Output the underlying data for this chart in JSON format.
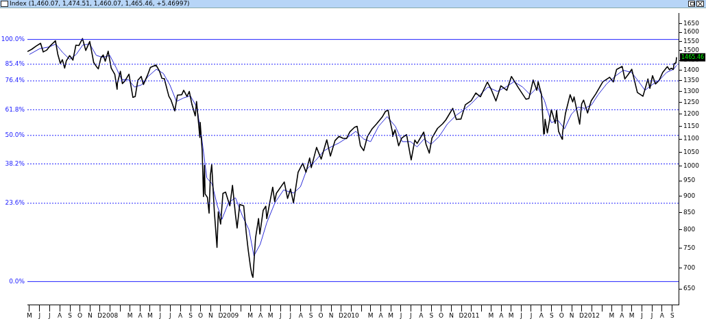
{
  "chart_data": {
    "type": "line",
    "title": "Index (1,460.07, 1,474.51, 1,460.07, 1,465.46, +5.46997)",
    "log": "y",
    "marker": "none",
    "line_style": "solid",
    "xlim": [
      "2007-04-25",
      "2012-09-20"
    ],
    "xticks": [
      {
        "value": "2007-05-01",
        "label": "M"
      },
      {
        "value": "2007-06-01",
        "label": "J"
      },
      {
        "value": "2007-07-01",
        "label": "J"
      },
      {
        "value": "2007-08-01",
        "label": "A"
      },
      {
        "value": "2007-09-01",
        "label": "S"
      },
      {
        "value": "2007-10-01",
        "label": "O"
      },
      {
        "value": "2007-11-01",
        "label": "N"
      },
      {
        "value": "2007-12-01",
        "label": "D"
      },
      {
        "value": "2008-01-01",
        "label": "2008"
      },
      {
        "value": "2008-02-01",
        "label": null
      },
      {
        "value": "2008-03-01",
        "label": "M"
      },
      {
        "value": "2008-04-01",
        "label": "A"
      },
      {
        "value": "2008-05-01",
        "label": "M"
      },
      {
        "value": "2008-06-01",
        "label": "J"
      },
      {
        "value": "2008-07-01",
        "label": "J"
      },
      {
        "value": "2008-08-01",
        "label": "A"
      },
      {
        "value": "2008-09-01",
        "label": "S"
      },
      {
        "value": "2008-10-01",
        "label": "O"
      },
      {
        "value": "2008-11-01",
        "label": "N"
      },
      {
        "value": "2008-12-01",
        "label": "D"
      },
      {
        "value": "2009-01-01",
        "label": "2009"
      },
      {
        "value": "2009-02-01",
        "label": null
      },
      {
        "value": "2009-03-01",
        "label": "M"
      },
      {
        "value": "2009-04-01",
        "label": "A"
      },
      {
        "value": "2009-05-01",
        "label": "M"
      },
      {
        "value": "2009-06-01",
        "label": "J"
      },
      {
        "value": "2009-07-01",
        "label": "J"
      },
      {
        "value": "2009-08-01",
        "label": "A"
      },
      {
        "value": "2009-09-01",
        "label": "S"
      },
      {
        "value": "2009-10-01",
        "label": "O"
      },
      {
        "value": "2009-11-01",
        "label": "N"
      },
      {
        "value": "2009-12-01",
        "label": "D"
      },
      {
        "value": "2010-01-01",
        "label": "2010"
      },
      {
        "value": "2010-02-01",
        "label": null
      },
      {
        "value": "2010-03-01",
        "label": "M"
      },
      {
        "value": "2010-04-01",
        "label": "A"
      },
      {
        "value": "2010-05-01",
        "label": "M"
      },
      {
        "value": "2010-06-01",
        "label": "J"
      },
      {
        "value": "2010-07-01",
        "label": "J"
      },
      {
        "value": "2010-08-01",
        "label": "A"
      },
      {
        "value": "2010-09-01",
        "label": "S"
      },
      {
        "value": "2010-10-01",
        "label": "O"
      },
      {
        "value": "2010-11-01",
        "label": "N"
      },
      {
        "value": "2010-12-01",
        "label": "D"
      },
      {
        "value": "2011-01-01",
        "label": "2011"
      },
      {
        "value": "2011-02-01",
        "label": null
      },
      {
        "value": "2011-03-01",
        "label": "M"
      },
      {
        "value": "2011-04-01",
        "label": "A"
      },
      {
        "value": "2011-05-01",
        "label": "M"
      },
      {
        "value": "2011-06-01",
        "label": "J"
      },
      {
        "value": "2011-07-01",
        "label": "J"
      },
      {
        "value": "2011-08-01",
        "label": "A"
      },
      {
        "value": "2011-09-01",
        "label": "S"
      },
      {
        "value": "2011-10-01",
        "label": "O"
      },
      {
        "value": "2011-11-01",
        "label": "N"
      },
      {
        "value": "2011-12-01",
        "label": "D"
      },
      {
        "value": "2012-01-01",
        "label": "2012"
      },
      {
        "value": "2012-02-01",
        "label": null
      },
      {
        "value": "2012-03-01",
        "label": "M"
      },
      {
        "value": "2012-04-01",
        "label": "A"
      },
      {
        "value": "2012-05-01",
        "label": "M"
      },
      {
        "value": "2012-06-01",
        "label": "J"
      },
      {
        "value": "2012-07-01",
        "label": "J"
      },
      {
        "value": "2012-08-01",
        "label": "A"
      },
      {
        "value": "2012-09-01",
        "label": "S"
      }
    ],
    "ylim": [
      615,
      1710
    ],
    "yticks": [
      650,
      700,
      750,
      800,
      850,
      900,
      950,
      1000,
      1050,
      1100,
      1150,
      1200,
      1250,
      1300,
      1350,
      1400,
      1450,
      1500,
      1550,
      1600,
      1650
    ],
    "series": [
      {
        "color": "#000000",
        "x": [
          "2007-04-25",
          "2007-05-08",
          "2007-05-22",
          "2007-06-04",
          "2007-06-12",
          "2007-06-22",
          "2007-07-03",
          "2007-07-19",
          "2007-07-26",
          "2007-08-03",
          "2007-08-09",
          "2007-08-16",
          "2007-08-21",
          "2007-08-31",
          "2007-09-10",
          "2007-09-19",
          "2007-09-28",
          "2007-10-09",
          "2007-10-19",
          "2007-10-31",
          "2007-11-08",
          "2007-11-12",
          "2007-11-21",
          "2007-11-26",
          "2007-12-04",
          "2007-12-11",
          "2007-12-17",
          "2007-12-26",
          "2008-01-04",
          "2008-01-15",
          "2008-01-22",
          "2008-01-23",
          "2008-02-01",
          "2008-02-07",
          "2008-02-15",
          "2008-02-27",
          "2008-03-10",
          "2008-03-17",
          "2008-03-25",
          "2008-04-04",
          "2008-04-11",
          "2008-04-23",
          "2008-05-02",
          "2008-05-19",
          "2008-05-29",
          "2008-06-06",
          "2008-06-13",
          "2008-06-27",
          "2008-07-03",
          "2008-07-15",
          "2008-07-23",
          "2008-08-05",
          "2008-08-11",
          "2008-08-21",
          "2008-08-28",
          "2008-09-05",
          "2008-09-15",
          "2008-09-19",
          "2008-09-29",
          "2008-09-30",
          "2008-10-06",
          "2008-10-10",
          "2008-10-13",
          "2008-10-15",
          "2008-10-22",
          "2008-10-27",
          "2008-10-31",
          "2008-11-04",
          "2008-11-12",
          "2008-11-20",
          "2008-11-24",
          "2008-12-01",
          "2008-12-08",
          "2008-12-16",
          "2008-12-29",
          "2009-01-06",
          "2009-01-15",
          "2009-01-20",
          "2009-01-28",
          "2009-02-09",
          "2009-02-17",
          "2009-02-23",
          "2009-03-02",
          "2009-03-06",
          "2009-03-09",
          "2009-03-17",
          "2009-03-26",
          "2009-03-30",
          "2009-04-09",
          "2009-04-17",
          "2009-04-20",
          "2009-05-08",
          "2009-05-14",
          "2009-05-19",
          "2009-06-12",
          "2009-06-22",
          "2009-07-01",
          "2009-07-10",
          "2009-07-24",
          "2009-08-07",
          "2009-08-17",
          "2009-08-28",
          "2009-09-02",
          "2009-09-18",
          "2009-10-02",
          "2009-10-19",
          "2009-10-30",
          "2009-11-13",
          "2009-11-25",
          "2009-12-07",
          "2009-12-18",
          "2009-12-28",
          "2010-01-11",
          "2010-01-19",
          "2010-01-29",
          "2010-02-08",
          "2010-02-19",
          "2010-03-05",
          "2010-03-19",
          "2010-04-05",
          "2010-04-15",
          "2010-04-23",
          "2010-04-27",
          "2010-05-06",
          "2010-05-07",
          "2010-05-14",
          "2010-05-25",
          "2010-06-03",
          "2010-06-18",
          "2010-06-29",
          "2010-07-02",
          "2010-07-13",
          "2010-07-20",
          "2010-08-09",
          "2010-08-16",
          "2010-08-26",
          "2010-09-03",
          "2010-09-20",
          "2010-10-05",
          "2010-10-15",
          "2010-11-05",
          "2010-11-16",
          "2010-11-30",
          "2010-12-13",
          "2010-12-31",
          "2011-01-14",
          "2011-01-28",
          "2011-02-18",
          "2011-03-02",
          "2011-03-16",
          "2011-03-31",
          "2011-04-18",
          "2011-05-02",
          "2011-05-23",
          "2011-06-15",
          "2011-06-24",
          "2011-07-07",
          "2011-07-18",
          "2011-07-22",
          "2011-08-01",
          "2011-08-08",
          "2011-08-10",
          "2011-08-12",
          "2011-08-19",
          "2011-08-31",
          "2011-09-12",
          "2011-09-16",
          "2011-09-22",
          "2011-10-03",
          "2011-10-04",
          "2011-10-13",
          "2011-10-27",
          "2011-11-04",
          "2011-11-08",
          "2011-11-25",
          "2011-12-01",
          "2011-12-07",
          "2011-12-19",
          "2011-12-30",
          "2012-01-13",
          "2012-02-03",
          "2012-02-24",
          "2012-03-06",
          "2012-03-16",
          "2012-04-02",
          "2012-04-10",
          "2012-04-20",
          "2012-05-01",
          "2012-05-18",
          "2012-06-04",
          "2012-06-19",
          "2012-06-25",
          "2012-07-03",
          "2012-07-12",
          "2012-07-23",
          "2012-08-03",
          "2012-08-17",
          "2012-08-23",
          "2012-08-29",
          "2012-09-04",
          "2012-09-06",
          "2012-09-12",
          "2012-09-14"
        ],
        "values": [
          1495,
          1507,
          1525,
          1539,
          1493,
          1502,
          1525,
          1553,
          1482,
          1434,
          1453,
          1411,
          1447,
          1474,
          1451,
          1529,
          1527,
          1565,
          1501,
          1549,
          1475,
          1439,
          1417,
          1407,
          1463,
          1477,
          1445,
          1497,
          1411,
          1380,
          1310,
          1338,
          1395,
          1336,
          1349,
          1381,
          1273,
          1277,
          1352,
          1370,
          1332,
          1375,
          1414,
          1426,
          1398,
          1361,
          1360,
          1278,
          1263,
          1214,
          1283,
          1285,
          1305,
          1277,
          1300,
          1242,
          1193,
          1255,
          1106,
          1166,
          1057,
          899,
          1003,
          907,
          896,
          848,
          969,
          1005,
          852,
          752,
          852,
          816,
          909,
          913,
          870,
          935,
          843,
          805,
          874,
          870,
          789,
          743,
          700,
          683,
          677,
          778,
          832,
          788,
          856,
          869,
          832,
          929,
          883,
          909,
          946,
          893,
          923,
          879,
          979,
          1010,
          979,
          1029,
          995,
          1068,
          1025,
          1097,
          1036,
          1094,
          1110,
          1103,
          1102,
          1128,
          1146,
          1150,
          1074,
          1056,
          1109,
          1139,
          1160,
          1188,
          1212,
          1217,
          1183,
          1128,
          1110,
          1136,
          1074,
          1103,
          1117,
          1041,
          1022,
          1096,
          1083,
          1127,
          1080,
          1047,
          1104,
          1142,
          1160,
          1176,
          1225,
          1178,
          1180,
          1240,
          1258,
          1293,
          1276,
          1343,
          1308,
          1257,
          1326,
          1305,
          1370,
          1317,
          1265,
          1268,
          1353,
          1305,
          1345,
          1287,
          1119,
          1121,
          1179,
          1124,
          1219,
          1162,
          1216,
          1130,
          1099,
          1124,
          1204,
          1285,
          1253,
          1275,
          1159,
          1244,
          1261,
          1205,
          1258,
          1289,
          1344,
          1366,
          1344,
          1404,
          1419,
          1358,
          1379,
          1405,
          1295,
          1278,
          1358,
          1314,
          1374,
          1334,
          1351,
          1390,
          1418,
          1403,
          1410,
          1404,
          1432,
          1437,
          1465.46
        ]
      },
      {
        "color": "#2b2bd8",
        "x": [
          "2007-05-01",
          "2007-06-01",
          "2007-07-01",
          "2007-07-20",
          "2007-08-10",
          "2007-08-31",
          "2007-09-20",
          "2007-10-10",
          "2007-10-31",
          "2007-11-20",
          "2007-12-10",
          "2007-12-31",
          "2008-01-20",
          "2008-02-05",
          "2008-02-25",
          "2008-03-15",
          "2008-04-05",
          "2008-04-25",
          "2008-05-20",
          "2008-06-10",
          "2008-06-30",
          "2008-07-20",
          "2008-08-10",
          "2008-08-31",
          "2008-09-20",
          "2008-10-05",
          "2008-10-20",
          "2008-11-05",
          "2008-11-21",
          "2008-12-05",
          "2008-12-25",
          "2009-01-15",
          "2009-02-05",
          "2009-02-25",
          "2009-03-12",
          "2009-03-31",
          "2009-04-20",
          "2009-05-15",
          "2009-06-10",
          "2009-07-10",
          "2009-07-31",
          "2009-08-20",
          "2009-09-15",
          "2009-10-10",
          "2009-11-01",
          "2009-11-25",
          "2009-12-20",
          "2010-01-15",
          "2010-02-08",
          "2010-03-01",
          "2010-03-25",
          "2010-04-20",
          "2010-05-15",
          "2010-06-05",
          "2010-06-30",
          "2010-07-20",
          "2010-08-10",
          "2010-08-31",
          "2010-09-25",
          "2010-10-20",
          "2010-11-15",
          "2010-12-10",
          "2010-12-31",
          "2011-01-20",
          "2011-02-20",
          "2011-03-20",
          "2011-04-15",
          "2011-05-10",
          "2011-06-05",
          "2011-06-28",
          "2011-07-20",
          "2011-08-10",
          "2011-08-31",
          "2011-09-20",
          "2011-10-10",
          "2011-10-31",
          "2011-11-20",
          "2011-12-10",
          "2011-12-31",
          "2012-01-20",
          "2012-02-15",
          "2012-03-15",
          "2012-04-05",
          "2012-04-30",
          "2012-05-20",
          "2012-06-10",
          "2012-07-01",
          "2012-07-25",
          "2012-08-15",
          "2012-09-05",
          "2012-09-14"
        ],
        "values": [
          1480,
          1510,
          1520,
          1535,
          1490,
          1455,
          1480,
          1530,
          1535,
          1475,
          1465,
          1475,
          1410,
          1355,
          1355,
          1320,
          1330,
          1370,
          1405,
          1385,
          1330,
          1255,
          1270,
          1280,
          1230,
          1100,
          960,
          940,
          870,
          830,
          880,
          895,
          840,
          800,
          730,
          760,
          820,
          880,
          920,
          910,
          930,
          990,
          1020,
          1055,
          1070,
          1085,
          1105,
          1130,
          1100,
          1090,
          1150,
          1190,
          1150,
          1090,
          1090,
          1070,
          1100,
          1080,
          1110,
          1160,
          1195,
          1220,
          1245,
          1275,
          1320,
          1300,
          1320,
          1345,
          1320,
          1285,
          1320,
          1260,
          1165,
          1175,
          1140,
          1200,
          1230,
          1225,
          1240,
          1285,
          1335,
          1375,
          1400,
          1390,
          1350,
          1305,
          1330,
          1355,
          1390,
          1405,
          1425
        ]
      }
    ],
    "ref_lines": [
      {
        "axis": "y",
        "value": 1560,
        "color": "#2020ff",
        "line_style": "solid"
      },
      {
        "axis": "y",
        "value": 1430,
        "color": "#2020ff",
        "line_style": "dotted"
      },
      {
        "axis": "y",
        "value": 1349,
        "color": "#2020ff",
        "line_style": "dotted"
      },
      {
        "axis": "y",
        "value": 1219,
        "color": "#2020ff",
        "line_style": "dotted"
      },
      {
        "axis": "y",
        "value": 1114,
        "color": "#2020ff",
        "line_style": "dotted"
      },
      {
        "axis": "y",
        "value": 1008,
        "color": "#2020ff",
        "line_style": "dotted"
      },
      {
        "axis": "y",
        "value": 878,
        "color": "#2020ff",
        "line_style": "dotted"
      },
      {
        "axis": "y",
        "value": 667,
        "color": "#2020ff",
        "line_style": "solid"
      }
    ],
    "annotations": [
      {
        "text": "1465.46",
        "x": "2012-09-14",
        "y": 1465.46
      },
      "100.0%",
      "85.4%",
      "76.4%",
      "61.8%",
      "50.0%",
      "38.2%",
      "23.6%",
      "0.0%"
    ]
  }
}
